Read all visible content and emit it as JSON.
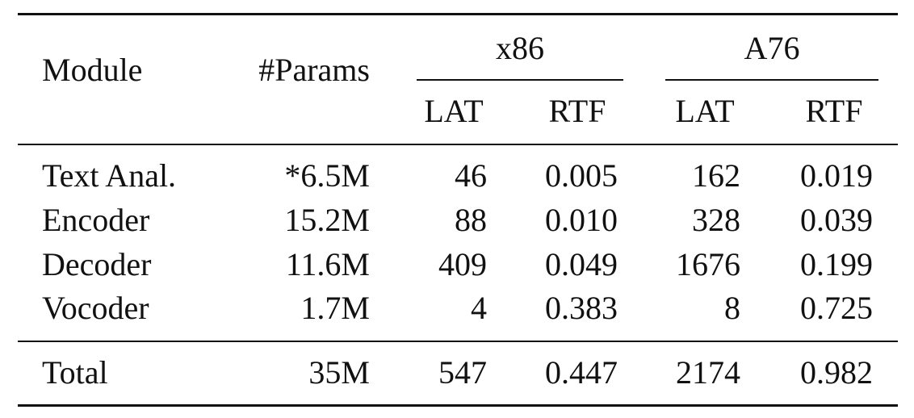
{
  "table": {
    "header": {
      "module": "Module",
      "params": "#Params",
      "groups": [
        "x86",
        "A76"
      ],
      "subcolumns": [
        "LAT",
        "RTF",
        "LAT",
        "RTF"
      ]
    },
    "rows": [
      [
        "Text Anal.",
        "*6.5M",
        "46",
        "0.005",
        "162",
        "0.019"
      ],
      [
        "Encoder",
        "15.2M",
        "88",
        "0.010",
        "328",
        "0.039"
      ],
      [
        "Decoder",
        "11.6M",
        "409",
        "0.049",
        "1676",
        "0.199"
      ],
      [
        "Vocoder",
        "1.7M",
        "4",
        "0.383",
        "8",
        "0.725"
      ]
    ],
    "total": [
      "Total",
      "35M",
      "547",
      "0.447",
      "2174",
      "0.982"
    ]
  }
}
